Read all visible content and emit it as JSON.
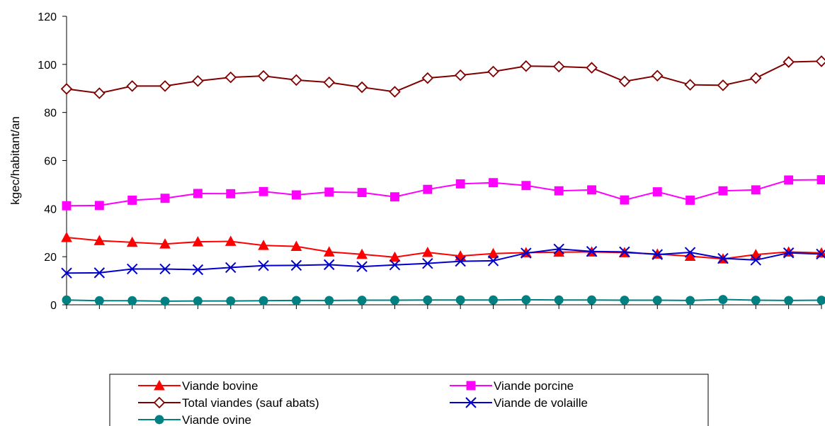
{
  "chart_data": {
    "type": "line",
    "ylabel": "kgec/habitant/an",
    "xlabel": "",
    "ylim": [
      0,
      120
    ],
    "yticks": [
      0,
      20,
      40,
      60,
      80,
      100,
      120
    ],
    "grid": false,
    "legend_position": "bottom",
    "x": [
      1,
      2,
      3,
      4,
      5,
      6,
      7,
      8,
      9,
      10,
      11,
      12,
      13,
      14,
      15,
      16,
      17,
      18,
      19,
      20,
      21,
      22,
      23,
      24
    ],
    "series": [
      {
        "name": "Viande bovine",
        "color": "#ff0000",
        "marker": "triangle",
        "values": [
          28,
          26.7,
          26,
          25.3,
          26.2,
          26.4,
          24.7,
          24.3,
          22,
          21,
          19.8,
          21.8,
          20.3,
          21.3,
          21.7,
          21.9,
          22,
          21.7,
          21.1,
          20.2,
          19.1,
          20.9,
          22,
          21.6
        ]
      },
      {
        "name": "Viande porcine",
        "color": "#ff00ff",
        "marker": "square",
        "values": [
          41.2,
          41.3,
          43.5,
          44.3,
          46.3,
          46.2,
          47.1,
          45.7,
          46.9,
          46.7,
          44.9,
          48,
          50.3,
          50.8,
          49.6,
          47.4,
          47.8,
          43.6,
          47,
          43.5,
          47.4,
          47.8,
          51.9,
          52
        ]
      },
      {
        "name": "Total viandes (sauf abats)",
        "color": "#800000",
        "marker": "diamond",
        "values": [
          89.8,
          88,
          91,
          91,
          93.1,
          94.6,
          95.2,
          93.5,
          92.5,
          90.5,
          88.6,
          94.3,
          95.5,
          97,
          99.3,
          99.1,
          98.6,
          92.9,
          95.3,
          91.5,
          91.3,
          94.3,
          101,
          101.3
        ]
      },
      {
        "name": "Viande de volaille",
        "color": "#0000cc",
        "marker": "x",
        "values": [
          13.2,
          13.3,
          14.9,
          14.9,
          14.6,
          15.5,
          16.3,
          16.4,
          16.7,
          15.9,
          16.6,
          17.2,
          18.1,
          18.3,
          21.5,
          23.2,
          22.2,
          22,
          20.9,
          21.8,
          19.3,
          18.6,
          21.6,
          21.1
        ]
      },
      {
        "name": "Viande ovine",
        "color": "#008080",
        "marker": "circle",
        "values": [
          2,
          1.7,
          1.7,
          1.5,
          1.6,
          1.6,
          1.7,
          1.8,
          1.8,
          1.9,
          1.9,
          2,
          2,
          2,
          2.1,
          2,
          2,
          1.9,
          1.9,
          1.8,
          2.2,
          1.9,
          1.8,
          1.9
        ]
      }
    ]
  }
}
